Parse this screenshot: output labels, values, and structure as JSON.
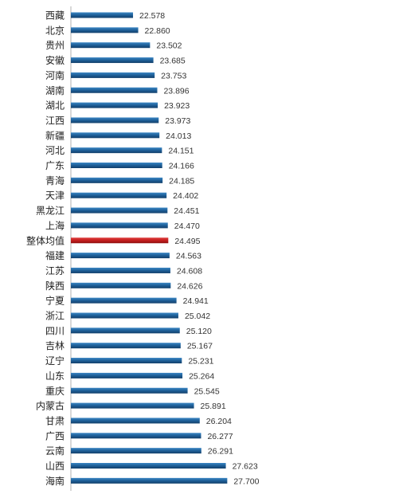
{
  "colors": {
    "bar": "#1e5f98",
    "bar_highlight": "#c41e1e",
    "axis": "#999999"
  },
  "chart_data": {
    "type": "bar",
    "orientation": "horizontal",
    "categories": [
      "西藏",
      "北京",
      "贵州",
      "安徽",
      "河南",
      "湖南",
      "湖北",
      "江西",
      "新疆",
      "河北",
      "广东",
      "青海",
      "天津",
      "黑龙江",
      "上海",
      "整体均值",
      "福建",
      "江苏",
      "陕西",
      "宁夏",
      "浙江",
      "四川",
      "吉林",
      "辽宁",
      "山东",
      "重庆",
      "内蒙古",
      "甘肃",
      "广西",
      "云南",
      "山西",
      "海南"
    ],
    "values": [
      22.578,
      22.86,
      23.502,
      23.685,
      23.753,
      23.896,
      23.923,
      23.973,
      24.013,
      24.151,
      24.166,
      24.185,
      24.402,
      24.451,
      24.47,
      24.495,
      24.563,
      24.608,
      24.626,
      24.941,
      25.042,
      25.12,
      25.167,
      25.231,
      25.264,
      25.545,
      25.891,
      26.204,
      26.277,
      26.291,
      27.623,
      27.7
    ],
    "value_labels": [
      "22.578",
      "22.860",
      "23.502",
      "23.685",
      "23.753",
      "23.896",
      "23.923",
      "23.973",
      "24.013",
      "24.151",
      "24.166",
      "24.185",
      "24.402",
      "24.451",
      "24.470",
      "24.495",
      "24.563",
      "24.608",
      "24.626",
      "24.941",
      "25.042",
      "25.120",
      "25.167",
      "25.231",
      "25.264",
      "25.545",
      "25.891",
      "26.204",
      "26.277",
      "26.291",
      "27.623",
      "27.700"
    ],
    "highlight_category": "整体均值",
    "xlim": [
      19.2,
      28.0
    ],
    "grid": false,
    "legend": "none"
  }
}
